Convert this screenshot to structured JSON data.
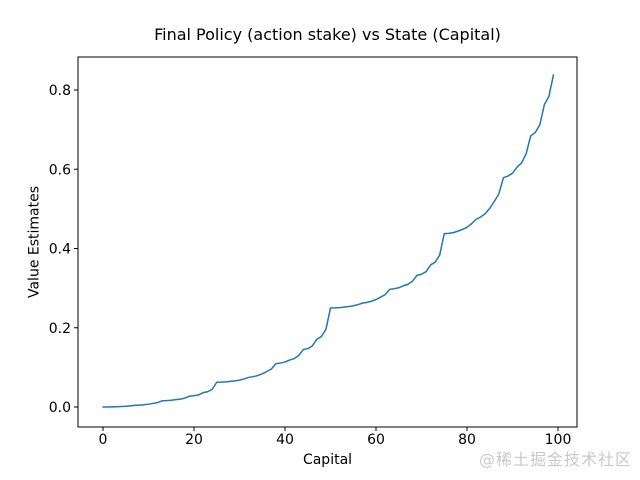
{
  "figure": {
    "background": "#ffffff"
  },
  "watermark": {
    "text": "@稀土掘金技术社区",
    "color": "#c9c9c9"
  },
  "chart_data": {
    "type": "line",
    "title": "Final Policy (action stake) vs State (Capital)",
    "xlabel": "Capital",
    "ylabel": "Value Estimates",
    "x_ticks": [
      0,
      20,
      40,
      60,
      80,
      100
    ],
    "x_tick_labels": [
      "0",
      "20",
      "40",
      "60",
      "80",
      "100"
    ],
    "y_ticks": [
      0.0,
      0.2,
      0.4,
      0.6,
      0.8
    ],
    "y_tick_labels": [
      "0.0",
      "0.2",
      "0.4",
      "0.6",
      "0.8"
    ],
    "xlim": [
      -5,
      105
    ],
    "ylim": [
      -0.045,
      0.88
    ],
    "grid": false,
    "legend": null,
    "line_color": "#1f77b4",
    "text_color": "#000000",
    "spine_color": "#000000",
    "series": [
      {
        "name": "Value Estimates",
        "x": [
          0,
          1,
          2,
          3,
          4,
          5,
          6,
          7,
          8,
          9,
          10,
          11,
          12,
          13,
          14,
          15,
          16,
          17,
          18,
          19,
          20,
          21,
          22,
          23,
          24,
          25,
          26,
          27,
          28,
          29,
          30,
          31,
          32,
          33,
          34,
          35,
          36,
          37,
          38,
          39,
          40,
          41,
          42,
          43,
          44,
          45,
          46,
          47,
          48,
          49,
          50,
          51,
          52,
          53,
          54,
          55,
          56,
          57,
          58,
          59,
          60,
          61,
          62,
          63,
          64,
          65,
          66,
          67,
          68,
          69,
          70,
          71,
          72,
          73,
          74,
          75,
          76,
          77,
          78,
          79,
          80,
          81,
          82,
          83,
          84,
          85,
          86,
          87,
          88,
          89,
          90,
          91,
          92,
          93,
          94,
          95,
          96,
          97,
          98,
          99
        ],
        "y": [
          0.0,
          0.0001,
          0.0003,
          0.0007,
          0.0012,
          0.0018,
          0.0028,
          0.004,
          0.0047,
          0.0056,
          0.0071,
          0.009,
          0.0111,
          0.0157,
          0.0161,
          0.017,
          0.0187,
          0.0198,
          0.0224,
          0.0274,
          0.0283,
          0.0305,
          0.0362,
          0.0385,
          0.0445,
          0.0625,
          0.0627,
          0.0634,
          0.0646,
          0.066,
          0.0678,
          0.0708,
          0.0746,
          0.0765,
          0.0793,
          0.0838,
          0.0896,
          0.0959,
          0.1095,
          0.1109,
          0.1134,
          0.1185,
          0.122,
          0.1297,
          0.1447,
          0.1475,
          0.154,
          0.171,
          0.178,
          0.196,
          0.25,
          0.2502,
          0.2509,
          0.2521,
          0.2535,
          0.2553,
          0.2583,
          0.2621,
          0.264,
          0.2668,
          0.2713,
          0.2771,
          0.2834,
          0.297,
          0.2984,
          0.3009,
          0.306,
          0.3095,
          0.3172,
          0.3322,
          0.335,
          0.3415,
          0.3585,
          0.3655,
          0.3835,
          0.4375,
          0.4382,
          0.4401,
          0.4438,
          0.448,
          0.4534,
          0.4625,
          0.4738,
          0.4795,
          0.4879,
          0.5013,
          0.5189,
          0.5376,
          0.5786,
          0.5828,
          0.5901,
          0.6054,
          0.6159,
          0.6392,
          0.684,
          0.6926,
          0.712,
          0.763,
          0.784,
          0.838
        ]
      }
    ]
  }
}
